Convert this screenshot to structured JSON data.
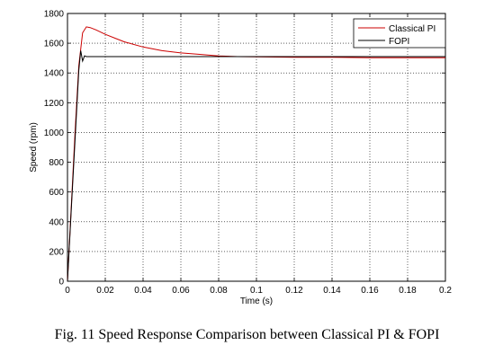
{
  "chart_data": {
    "type": "line",
    "title": "",
    "xlabel": "Time (s)",
    "ylabel": "Speed (rpm)",
    "xlim": [
      0,
      0.2
    ],
    "ylim": [
      0,
      1800
    ],
    "xticks": [
      0,
      0.02,
      0.04,
      0.06,
      0.08,
      0.1,
      0.12,
      0.14,
      0.16,
      0.18,
      0.2
    ],
    "xtick_labels": [
      "0",
      "0.02",
      "0.04",
      "0.06",
      "0.08",
      "0.1",
      "0.12",
      "0.14",
      "0.16",
      "0.18",
      "0.2"
    ],
    "yticks": [
      0,
      200,
      400,
      600,
      800,
      1000,
      1200,
      1400,
      1600,
      1800
    ],
    "ytick_labels": [
      "0",
      "200",
      "400",
      "600",
      "800",
      "1000",
      "1200",
      "1400",
      "1600",
      "1800"
    ],
    "grid": true,
    "legend_position": "top-right",
    "series": [
      {
        "name": "Classical PI",
        "color": "#cc0000",
        "x": [
          0,
          0.002,
          0.004,
          0.006,
          0.008,
          0.01,
          0.012,
          0.015,
          0.02,
          0.03,
          0.04,
          0.05,
          0.06,
          0.07,
          0.08,
          0.09,
          0.1,
          0.12,
          0.14,
          0.16,
          0.18,
          0.2
        ],
        "y": [
          0,
          500,
          1000,
          1450,
          1670,
          1710,
          1705,
          1690,
          1660,
          1610,
          1575,
          1550,
          1535,
          1525,
          1515,
          1510,
          1508,
          1506,
          1505,
          1503,
          1502,
          1502
        ]
      },
      {
        "name": "FOPI",
        "color": "#000000",
        "x": [
          0,
          0.002,
          0.004,
          0.006,
          0.007,
          0.008,
          0.009,
          0.01,
          0.015,
          0.05,
          0.1,
          0.15,
          0.2
        ],
        "y": [
          0,
          480,
          950,
          1420,
          1550,
          1480,
          1515,
          1510,
          1510,
          1510,
          1510,
          1510,
          1510
        ]
      }
    ]
  },
  "caption": "Fig. 11 Speed Response Comparison between Classical PI & FOPI"
}
